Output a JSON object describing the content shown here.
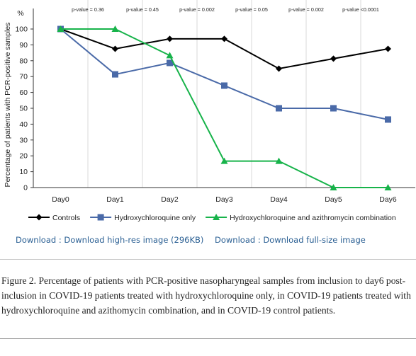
{
  "chart_data": {
    "type": "line",
    "y_unit_label": "%",
    "ylabel": "Percentage of patients with PCR-positive samples",
    "xlabel": "",
    "categories": [
      "Day0",
      "Day1",
      "Day2",
      "Day3",
      "Day4",
      "Day5",
      "Day6"
    ],
    "yticks": [
      0,
      10,
      20,
      30,
      40,
      50,
      60,
      70,
      80,
      90,
      100
    ],
    "ylim": [
      0,
      100
    ],
    "grid": "vertical",
    "legend_position": "bottom",
    "pvalues": [
      "p-value = 0.36",
      "p-value = 0.45",
      "p-value = 0.002",
      "p-value = 0.05",
      "p-value = 0.002",
      "p-value <0.0001"
    ],
    "series": [
      {
        "name": "Controls",
        "color": "#000000",
        "marker": "diamond",
        "values": [
          100,
          87.5,
          93.8,
          93.8,
          75,
          81.3,
          87.5
        ]
      },
      {
        "name": "Hydroxychloroquine only",
        "color": "#4a6aa8",
        "marker": "square",
        "values": [
          100,
          71.4,
          78.6,
          64.3,
          50,
          50,
          42.9
        ]
      },
      {
        "name": "Hydroxychloroquine and azithromycin combination",
        "color": "#17b34a",
        "marker": "triangle",
        "values": [
          100,
          100,
          83.3,
          16.7,
          16.7,
          0,
          0
        ]
      }
    ]
  },
  "links": {
    "hires": "Download : Download high-res image (296KB)",
    "fullsize": "Download : Download full-size image"
  },
  "caption": "Figure 2. Percentage of patients with PCR-positive nasopharyngeal samples from inclusion to day6 post-inclusion in COVID-19 patients treated with hydroxychloroquine only, in COVID-19 patients treated with hydroxychloroquine and azithomycin combination, and in COVID-19 control patients."
}
